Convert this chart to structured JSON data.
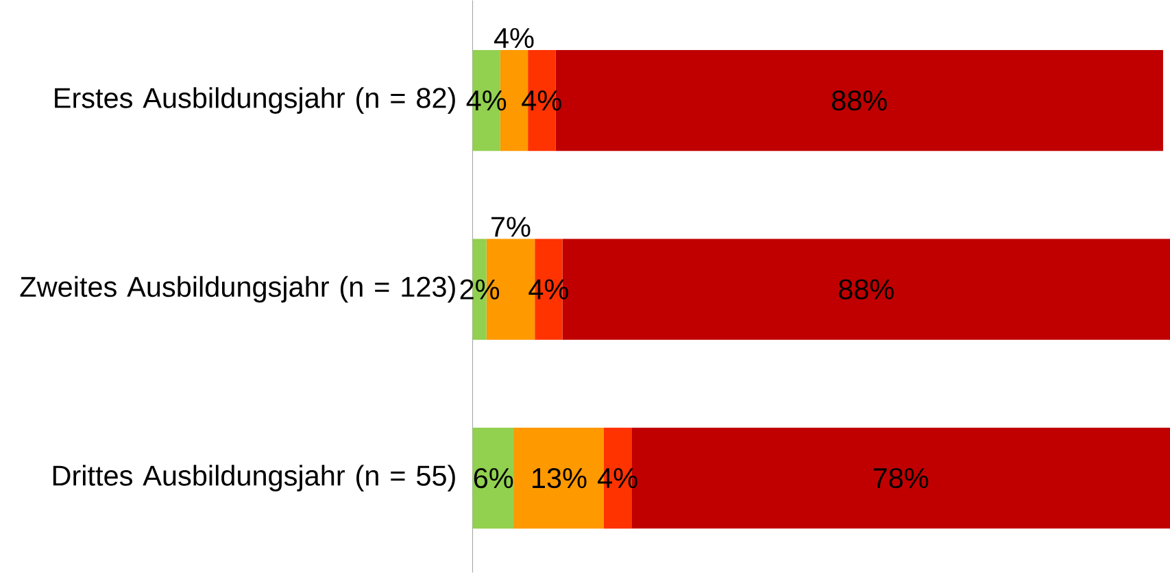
{
  "chart_data": {
    "type": "bar",
    "orientation": "horizontal",
    "stacked": true,
    "xlim": [
      0,
      101
    ],
    "tick_labels": "y",
    "categories": [
      "Erstes Ausbildungsjahr (n = 82)",
      "Zweites Ausbildungsjahr (n = 123)",
      "Drittes Ausbildungsjahr (n = 55)"
    ],
    "series": [
      {
        "color": "#92d050",
        "values": [
          4,
          2,
          6
        ],
        "value_labels": [
          "4%",
          "2%",
          "6%"
        ]
      },
      {
        "color": "#ff9900",
        "values": [
          4,
          7,
          13
        ],
        "value_labels": [
          "4%",
          "7%",
          "13%"
        ]
      },
      {
        "color": "#ff3300",
        "values": [
          4,
          4,
          4
        ],
        "value_labels": [
          "4%",
          "4%",
          "4%"
        ]
      },
      {
        "color": "#c00000",
        "values": [
          88,
          88,
          78
        ],
        "value_labels": [
          "88%",
          "88%",
          "78%"
        ]
      }
    ]
  }
}
